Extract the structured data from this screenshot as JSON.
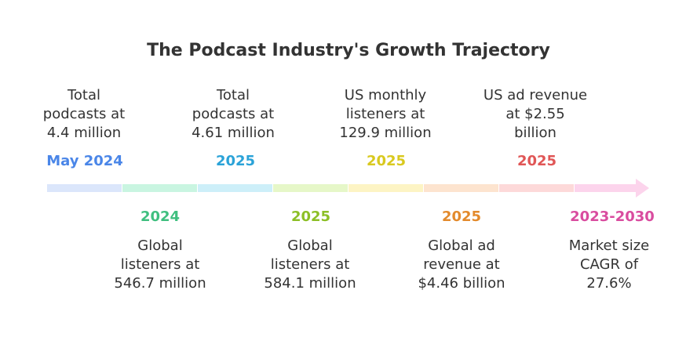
{
  "title": "The Podcast Industry's Growth Trajectory",
  "top_events": [
    {
      "date": "May 2024",
      "color": "#4a86e8",
      "text": "Total\npodcasts at\n4.4 million"
    },
    {
      "date": "2025",
      "color": "#2ba3d8",
      "text": "Total\npodcasts at\n4.61 million"
    },
    {
      "date": "2025",
      "color": "#d9c91f",
      "text": "US monthly\nlisteners at\n129.9 million"
    },
    {
      "date": "2025",
      "color": "#e05656",
      "text": "US ad revenue\nat $2.55\nbillion"
    }
  ],
  "bottom_events": [
    {
      "date": "2024",
      "color": "#3fbf7f",
      "text": "Global\nlisteners at\n546.7 million"
    },
    {
      "date": "2025",
      "color": "#8cbf26",
      "text": "Global\nlisteners at\n584.1 million"
    },
    {
      "date": "2025",
      "color": "#e38a2c",
      "text": "Global ad\nrevenue at\n$4.46 billion"
    },
    {
      "date": "2023-2030",
      "color": "#d94c9f",
      "text": "Market size\nCAGR of\n27.6%"
    }
  ],
  "timeline_colors": [
    "#dbe6fb",
    "#c9f5e1",
    "#cdeff9",
    "#e6f7c8",
    "#fdf4c4",
    "#fde4cf",
    "#fdd9d9",
    "#fcd4ec"
  ]
}
